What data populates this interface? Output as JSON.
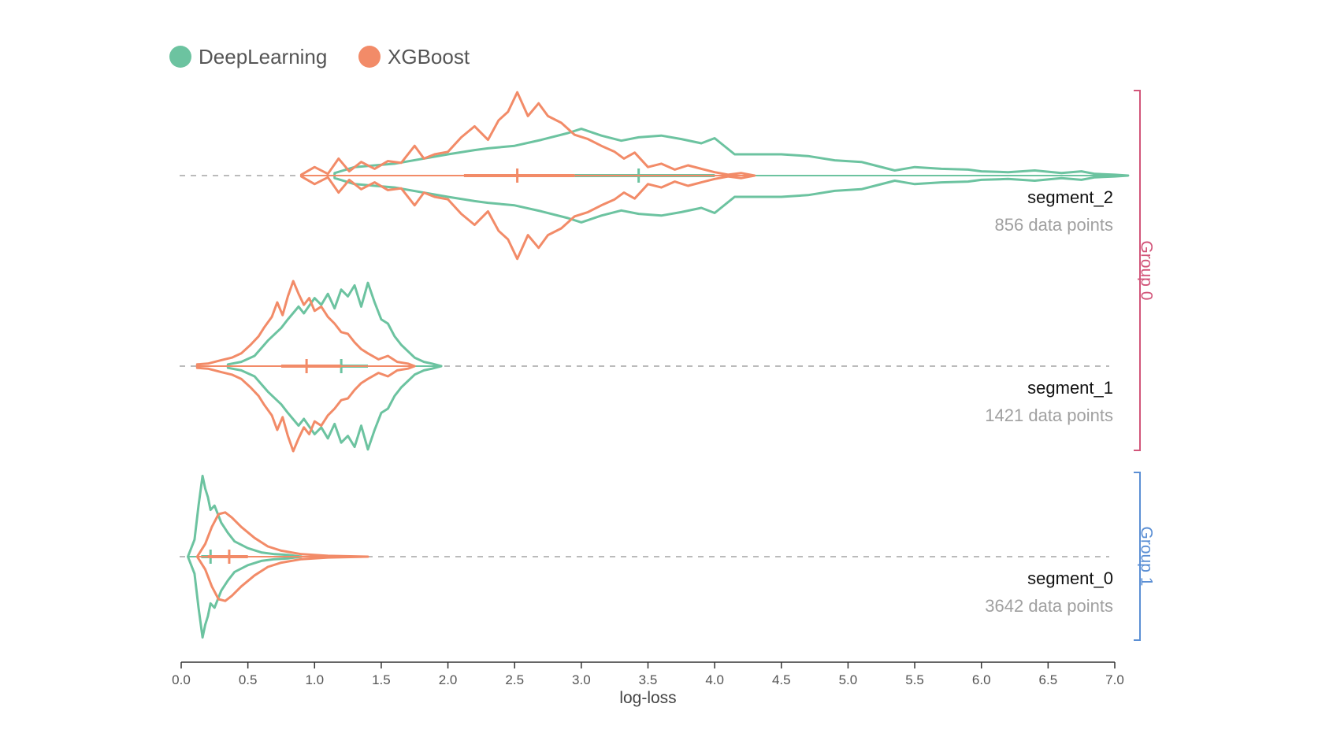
{
  "chart_data": {
    "type": "violin",
    "title": "",
    "xlabel": "log-loss",
    "xlim": [
      0,
      7.0
    ],
    "xticks": [
      "0.0",
      "0.5",
      "1.0",
      "1.5",
      "2.0",
      "2.5",
      "3.0",
      "3.5",
      "4.0",
      "4.5",
      "5.0",
      "5.5",
      "6.0",
      "6.5",
      "7.0"
    ],
    "legend_position": "top-left",
    "series": [
      {
        "name": "DeepLearning",
        "color": "#6cc3a0"
      },
      {
        "name": "XGBoost",
        "color": "#f28b68"
      }
    ],
    "segments": [
      {
        "name": "segment_2",
        "count_label": "856 data points",
        "violins": [
          {
            "series": "DeepLearning",
            "min": 1.15,
            "max": 7.1,
            "q1": 2.95,
            "q3": 4.0,
            "median": 3.43,
            "density": [
              [
                1.15,
                0.03
              ],
              [
                1.3,
                0.1
              ],
              [
                1.6,
                0.14
              ],
              [
                2.0,
                0.25
              ],
              [
                2.2,
                0.3
              ],
              [
                2.3,
                0.32
              ],
              [
                2.5,
                0.35
              ],
              [
                2.7,
                0.42
              ],
              [
                2.9,
                0.5
              ],
              [
                3.0,
                0.55
              ],
              [
                3.15,
                0.47
              ],
              [
                3.3,
                0.41
              ],
              [
                3.43,
                0.45
              ],
              [
                3.6,
                0.47
              ],
              [
                3.75,
                0.43
              ],
              [
                3.9,
                0.38
              ],
              [
                4.0,
                0.44
              ],
              [
                4.15,
                0.25
              ],
              [
                4.5,
                0.25
              ],
              [
                4.7,
                0.23
              ],
              [
                4.9,
                0.18
              ],
              [
                5.1,
                0.16
              ],
              [
                5.2,
                0.12
              ],
              [
                5.35,
                0.06
              ],
              [
                5.5,
                0.1
              ],
              [
                5.7,
                0.08
              ],
              [
                5.9,
                0.07
              ],
              [
                6.0,
                0.05
              ],
              [
                6.2,
                0.04
              ],
              [
                6.4,
                0.06
              ],
              [
                6.6,
                0.03
              ],
              [
                6.75,
                0.05
              ],
              [
                6.85,
                0.02
              ],
              [
                7.0,
                0.01
              ],
              [
                7.1,
                0.0
              ]
            ]
          },
          {
            "series": "XGBoost",
            "min": 0.9,
            "max": 4.3,
            "q1": 2.12,
            "q3": 2.95,
            "median": 2.52,
            "density": [
              [
                0.9,
                0.01
              ],
              [
                1.0,
                0.1
              ],
              [
                1.1,
                0.02
              ],
              [
                1.18,
                0.2
              ],
              [
                1.26,
                0.05
              ],
              [
                1.35,
                0.16
              ],
              [
                1.45,
                0.08
              ],
              [
                1.55,
                0.17
              ],
              [
                1.65,
                0.15
              ],
              [
                1.75,
                0.35
              ],
              [
                1.82,
                0.2
              ],
              [
                1.9,
                0.25
              ],
              [
                2.0,
                0.28
              ],
              [
                2.1,
                0.45
              ],
              [
                2.2,
                0.58
              ],
              [
                2.3,
                0.42
              ],
              [
                2.38,
                0.65
              ],
              [
                2.45,
                0.75
              ],
              [
                2.52,
                0.98
              ],
              [
                2.6,
                0.7
              ],
              [
                2.68,
                0.85
              ],
              [
                2.75,
                0.7
              ],
              [
                2.85,
                0.62
              ],
              [
                2.95,
                0.48
              ],
              [
                3.05,
                0.43
              ],
              [
                3.15,
                0.35
              ],
              [
                3.25,
                0.28
              ],
              [
                3.32,
                0.2
              ],
              [
                3.4,
                0.27
              ],
              [
                3.5,
                0.1
              ],
              [
                3.6,
                0.14
              ],
              [
                3.7,
                0.07
              ],
              [
                3.8,
                0.12
              ],
              [
                3.9,
                0.08
              ],
              [
                4.0,
                0.04
              ],
              [
                4.1,
                0.01
              ],
              [
                4.2,
                0.03
              ],
              [
                4.3,
                0.0
              ]
            ]
          }
        ]
      },
      {
        "name": "segment_1",
        "count_label": "1421 data points",
        "violins": [
          {
            "series": "DeepLearning",
            "min": 0.35,
            "max": 1.95,
            "q1": 0.8,
            "q3": 1.4,
            "median": 1.2,
            "density": [
              [
                0.35,
                0.02
              ],
              [
                0.45,
                0.05
              ],
              [
                0.55,
                0.12
              ],
              [
                0.65,
                0.3
              ],
              [
                0.75,
                0.45
              ],
              [
                0.8,
                0.55
              ],
              [
                0.88,
                0.7
              ],
              [
                0.92,
                0.62
              ],
              [
                1.0,
                0.8
              ],
              [
                1.05,
                0.72
              ],
              [
                1.1,
                0.85
              ],
              [
                1.15,
                0.68
              ],
              [
                1.2,
                0.9
              ],
              [
                1.25,
                0.82
              ],
              [
                1.3,
                0.95
              ],
              [
                1.35,
                0.7
              ],
              [
                1.4,
                0.98
              ],
              [
                1.45,
                0.75
              ],
              [
                1.5,
                0.55
              ],
              [
                1.55,
                0.5
              ],
              [
                1.6,
                0.35
              ],
              [
                1.65,
                0.25
              ],
              [
                1.75,
                0.1
              ],
              [
                1.82,
                0.05
              ],
              [
                1.88,
                0.03
              ],
              [
                1.95,
                0.0
              ]
            ]
          },
          {
            "series": "XGBoost",
            "min": 0.12,
            "max": 1.75,
            "q1": 0.75,
            "q3": 1.2,
            "median": 0.94,
            "density": [
              [
                0.12,
                0.02
              ],
              [
                0.2,
                0.03
              ],
              [
                0.3,
                0.07
              ],
              [
                0.38,
                0.1
              ],
              [
                0.45,
                0.15
              ],
              [
                0.52,
                0.25
              ],
              [
                0.58,
                0.35
              ],
              [
                0.62,
                0.45
              ],
              [
                0.68,
                0.58
              ],
              [
                0.72,
                0.75
              ],
              [
                0.76,
                0.6
              ],
              [
                0.8,
                0.82
              ],
              [
                0.84,
                1.0
              ],
              [
                0.88,
                0.85
              ],
              [
                0.92,
                0.72
              ],
              [
                0.96,
                0.8
              ],
              [
                1.0,
                0.65
              ],
              [
                1.05,
                0.7
              ],
              [
                1.1,
                0.58
              ],
              [
                1.15,
                0.5
              ],
              [
                1.2,
                0.4
              ],
              [
                1.25,
                0.38
              ],
              [
                1.3,
                0.28
              ],
              [
                1.35,
                0.2
              ],
              [
                1.4,
                0.15
              ],
              [
                1.48,
                0.08
              ],
              [
                1.55,
                0.12
              ],
              [
                1.62,
                0.05
              ],
              [
                1.7,
                0.03
              ],
              [
                1.75,
                0.0
              ]
            ]
          }
        ]
      },
      {
        "name": "segment_0",
        "count_label": "3642 data points",
        "violins": [
          {
            "series": "DeepLearning",
            "min": 0.05,
            "max": 0.9,
            "q1": 0.15,
            "q3": 0.45,
            "median": 0.22,
            "density": [
              [
                0.05,
                0.0
              ],
              [
                0.1,
                0.2
              ],
              [
                0.13,
                0.6
              ],
              [
                0.16,
                0.95
              ],
              [
                0.18,
                0.8
              ],
              [
                0.2,
                0.7
              ],
              [
                0.22,
                0.55
              ],
              [
                0.25,
                0.6
              ],
              [
                0.3,
                0.4
              ],
              [
                0.35,
                0.28
              ],
              [
                0.4,
                0.18
              ],
              [
                0.5,
                0.1
              ],
              [
                0.6,
                0.05
              ],
              [
                0.7,
                0.03
              ],
              [
                0.8,
                0.02
              ],
              [
                0.9,
                0.0
              ]
            ]
          },
          {
            "series": "XGBoost",
            "min": 0.12,
            "max": 1.4,
            "q1": 0.2,
            "q3": 0.5,
            "median": 0.36,
            "density": [
              [
                0.12,
                0.0
              ],
              [
                0.18,
                0.15
              ],
              [
                0.23,
                0.35
              ],
              [
                0.28,
                0.5
              ],
              [
                0.33,
                0.52
              ],
              [
                0.38,
                0.46
              ],
              [
                0.45,
                0.35
              ],
              [
                0.55,
                0.22
              ],
              [
                0.65,
                0.12
              ],
              [
                0.75,
                0.07
              ],
              [
                0.9,
                0.03
              ],
              [
                1.1,
                0.01
              ],
              [
                1.4,
                0.0
              ]
            ]
          }
        ]
      }
    ],
    "groups": [
      {
        "label": "Group 0",
        "color": "#d2567a",
        "segments": [
          "segment_2",
          "segment_1"
        ]
      },
      {
        "label": "Group 1",
        "color": "#5b8fd4",
        "segments": [
          "segment_0"
        ]
      }
    ]
  }
}
